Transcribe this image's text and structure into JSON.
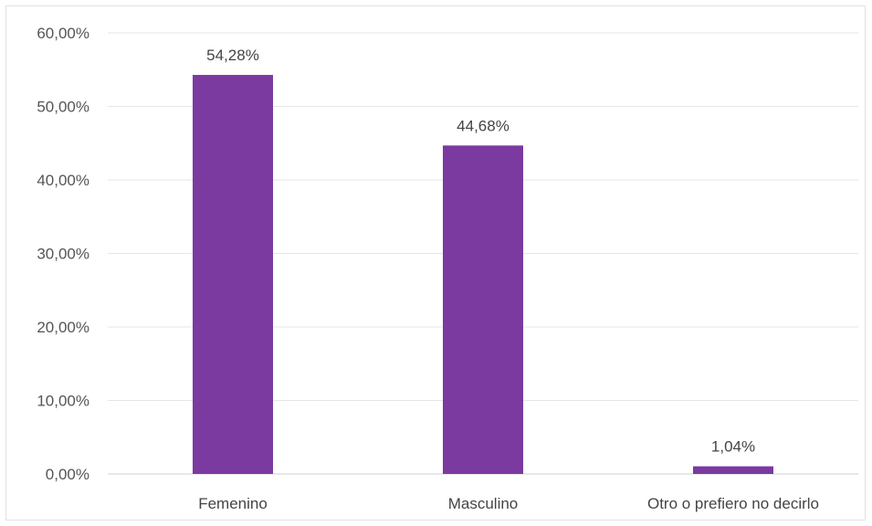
{
  "chart_data": {
    "type": "bar",
    "title": "",
    "xlabel": "",
    "ylabel": "",
    "categories": [
      "Femenino",
      "Masculino",
      "Otro o prefiero no decirlo"
    ],
    "values": [
      54.28,
      44.68,
      1.04
    ],
    "data_labels": [
      "54,28%",
      "44,68%",
      "1,04%"
    ],
    "ylim": [
      0,
      60
    ],
    "yticks": [
      0,
      10,
      20,
      30,
      40,
      50,
      60
    ],
    "ytick_labels": [
      "0,00%",
      "10,00%",
      "20,00%",
      "30,00%",
      "40,00%",
      "50,00%",
      "60,00%"
    ],
    "bar_color": "#7b3aa0",
    "grid": true,
    "legend": "none"
  }
}
